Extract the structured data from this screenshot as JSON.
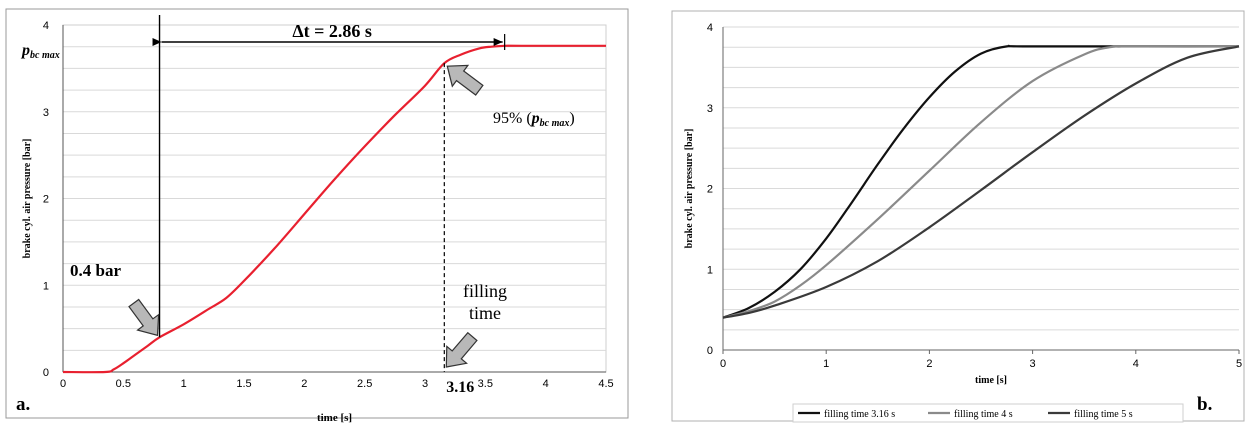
{
  "chart_data": [
    {
      "panel_label": "a.",
      "type": "line",
      "xlabel": "time [s]",
      "ylabel": "brake cyl. air pressure [bar]",
      "xlim": [
        0,
        4.5
      ],
      "ylim": [
        0,
        4
      ],
      "x_ticks": [
        "0",
        "0.5",
        "1",
        "1.5",
        "2",
        "2.5",
        "3",
        "3.5",
        "4",
        "4.5"
      ],
      "y_ticks": [
        "0",
        "1",
        "2",
        "3",
        "4"
      ],
      "grid": "horizontal",
      "color": "#e8202f",
      "series": [
        {
          "x": [
            0,
            0.35,
            0.42,
            0.5,
            0.6,
            0.7,
            0.8,
            1.0,
            1.2,
            1.35,
            1.5,
            1.75,
            2.0,
            2.25,
            2.5,
            2.75,
            3.0,
            3.16,
            3.3,
            3.45,
            3.55,
            3.66,
            3.8,
            4.5
          ],
          "y": [
            0,
            0,
            0.03,
            0.1,
            0.2,
            0.3,
            0.4,
            0.55,
            0.72,
            0.85,
            1.05,
            1.42,
            1.82,
            2.22,
            2.6,
            2.96,
            3.3,
            3.56,
            3.66,
            3.73,
            3.75,
            3.76,
            3.76,
            3.76
          ]
        }
      ],
      "annotations": {
        "pmax_label": "p",
        "pmax_sub": "bc max",
        "delta": "Δt = 2.86 s",
        "start_label": "0.4 bar",
        "pct_prefix": "95% (",
        "pct_p": "p",
        "pct_sub": "bc max",
        "pct_suffix": ")",
        "filling_line1": "filling",
        "filling_line2": "time",
        "t_value": "3.16",
        "start_x": 0.8,
        "start_y": 0.4,
        "end_x": 3.16,
        "end_y": 3.56,
        "delta_start_x": 0.8,
        "delta_end_x": 3.66
      }
    },
    {
      "panel_label": "b.",
      "type": "line",
      "xlabel": "time [s]",
      "ylabel": "brake cyl. air pressure [bar]",
      "xlim": [
        0,
        5
      ],
      "ylim": [
        0,
        4
      ],
      "x_ticks": [
        "0",
        "1",
        "2",
        "3",
        "4",
        "5"
      ],
      "y_ticks": [
        "0",
        "1",
        "2",
        "3",
        "4"
      ],
      "grid": "horizontal",
      "legend_position": "bottom",
      "series": [
        {
          "name": "filling time 3.16 s",
          "color": "#111111",
          "x": [
            0,
            0.25,
            0.5,
            0.75,
            1.0,
            1.25,
            1.5,
            1.75,
            2.0,
            2.25,
            2.5,
            2.75,
            3.0,
            5.0
          ],
          "y": [
            0.4,
            0.52,
            0.72,
            1.0,
            1.38,
            1.83,
            2.3,
            2.74,
            3.13,
            3.45,
            3.67,
            3.76,
            3.76,
            3.76
          ]
        },
        {
          "name": "filling time 4 s",
          "color": "#8a8a8a",
          "x": [
            0,
            0.25,
            0.5,
            0.75,
            1.0,
            1.5,
            2.0,
            2.5,
            3.0,
            3.5,
            3.75,
            4.0,
            5.0
          ],
          "y": [
            0.4,
            0.48,
            0.6,
            0.8,
            1.05,
            1.62,
            2.22,
            2.82,
            3.33,
            3.66,
            3.75,
            3.76,
            3.76
          ]
        },
        {
          "name": "filling time 5 s",
          "color": "#3a3a3a",
          "x": [
            0,
            0.25,
            0.5,
            1.0,
            1.5,
            2.0,
            2.5,
            3.0,
            3.5,
            4.0,
            4.5,
            5.0
          ],
          "y": [
            0.4,
            0.46,
            0.55,
            0.78,
            1.1,
            1.52,
            1.98,
            2.45,
            2.9,
            3.3,
            3.62,
            3.76
          ]
        }
      ]
    }
  ]
}
